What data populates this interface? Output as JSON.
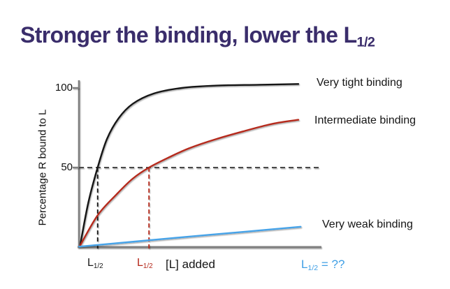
{
  "title": {
    "main": "Stronger the binding, lower the L",
    "sub": "1/2"
  },
  "colors": {
    "title": "#3a2d6b",
    "axis": "#7f7f7f",
    "half_max_line": "#4a4a4a",
    "tick_label": "#111111",
    "very_tight": "#141414",
    "intermediate": "#b5291c",
    "very_weak": "#47a3e8",
    "annotation_blue": "#3f9fe5"
  },
  "chart_data": {
    "type": "line",
    "title": "",
    "xlabel": "[L] added",
    "ylabel": "Percentage R bound to L",
    "xlim": [
      0,
      105
    ],
    "ylim": [
      0,
      105
    ],
    "grid": false,
    "x_tick_labels": [],
    "yticks": [
      {
        "value": 100,
        "label": "100"
      },
      {
        "value": 50,
        "label": "50"
      }
    ],
    "half_max": 50,
    "legend_position": "right of each curve end",
    "series": [
      {
        "name": "Very tight binding",
        "color": "#141414",
        "l_half": 8,
        "x": [
          0.5,
          4,
          8,
          12,
          17,
          23,
          32,
          44,
          59,
          77,
          94
        ],
        "y": [
          1,
          28,
          50,
          68,
          81,
          90,
          96.5,
          100,
          101.5,
          102,
          102.5
        ]
      },
      {
        "name": "Intermediate binding",
        "color": "#b5291c",
        "l_half": 30,
        "x": [
          0.5,
          8,
          16,
          23,
          30,
          38,
          47,
          59,
          71,
          83,
          94
        ],
        "y": [
          1,
          20,
          33,
          43,
          50,
          56,
          62,
          68,
          73,
          77.5,
          80
        ]
      },
      {
        "name": "Very weak binding",
        "color": "#47a3e8",
        "l_half": null,
        "x": [
          0,
          24,
          48,
          72,
          95
        ],
        "y": [
          0.3,
          3.5,
          6.7,
          9.8,
          12.8
        ]
      }
    ],
    "annotations": [
      {
        "main": "L",
        "sub": "1/2",
        "suffix": "",
        "color": "#1a1a1a"
      },
      {
        "main": "L",
        "sub": "1/2",
        "suffix": "",
        "color": "#b5291c"
      },
      {
        "main": "L",
        "sub": "1/2",
        "suffix": " = ??",
        "color": "#3f9fe5"
      }
    ]
  }
}
